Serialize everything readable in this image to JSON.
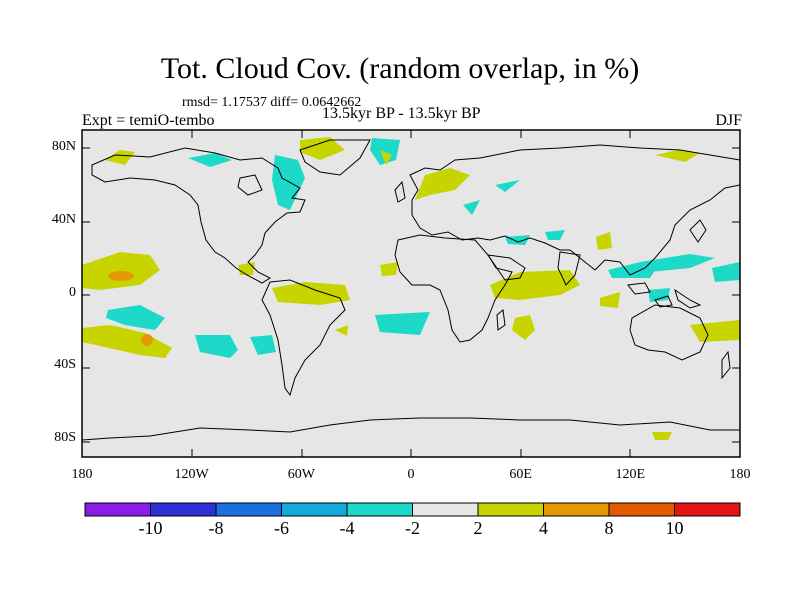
{
  "title": "Tot. Cloud Cov. (random overlap, in %)",
  "stats": "rmsd= 1.17537 diff= 0.0642662",
  "experiment": "Expt = temiO-tembo",
  "period": "13.5kyr BP - 13.5kyr BP",
  "season": "DJF",
  "lat_ticks": [
    {
      "label": "80N",
      "lat": 80
    },
    {
      "label": "40N",
      "lat": 40
    },
    {
      "label": "0",
      "lat": 0
    },
    {
      "label": "40S",
      "lat": -40
    },
    {
      "label": "80S",
      "lat": -80
    }
  ],
  "lon_ticks": [
    {
      "label": "180",
      "lon": -180
    },
    {
      "label": "120W",
      "lon": -120
    },
    {
      "label": "60W",
      "lon": -60
    },
    {
      "label": "0",
      "lon": 0
    },
    {
      "label": "60E",
      "lon": 60
    },
    {
      "label": "120E",
      "lon": 120
    },
    {
      "label": "180",
      "lon": 180
    }
  ],
  "colorbar": {
    "levels": [
      "-10",
      "-8",
      "-6",
      "-4",
      "-2",
      "2",
      "4",
      "8",
      "10"
    ],
    "colors": [
      "#8a1ee6",
      "#2f2fd8",
      "#1a6fe0",
      "#13a9dc",
      "#1cd9c8",
      "#e6e6e6",
      "#c8d400",
      "#e39a00",
      "#e35a00",
      "#e31414"
    ]
  },
  "colors": {
    "ocean_background": "#e6e6e6",
    "positive_2_4": "#c8d400",
    "positive_4_8": "#e39a00",
    "negative_2_4": "#1cd9c8",
    "negative_4_6": "#13a9dc"
  }
}
